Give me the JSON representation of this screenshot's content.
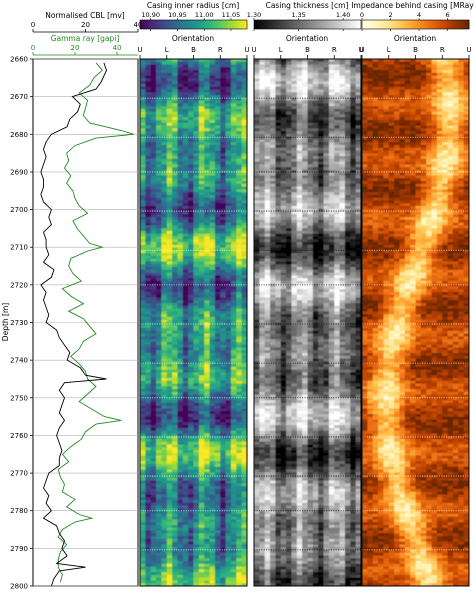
{
  "chart_data": [
    {
      "type": "line",
      "panel": "log-track",
      "ylabel": "Depth [m]",
      "ylim": [
        2800,
        2660
      ],
      "y_ticks": [
        2660,
        2670,
        2680,
        2690,
        2700,
        2710,
        2720,
        2730,
        2740,
        2750,
        2760,
        2770,
        2780,
        2790,
        2800
      ],
      "grid": true,
      "axes": [
        {
          "label": "Normalised CBL [mv]",
          "xlim": [
            0,
            40
          ],
          "ticks": [
            0,
            20,
            40
          ],
          "color": "#000000",
          "position": "top"
        },
        {
          "label": "Gamma ray [gapi]",
          "xlim": [
            0,
            50
          ],
          "ticks": [
            0,
            20,
            40
          ],
          "color": "#228b22",
          "position": "top"
        }
      ],
      "series": [
        {
          "name": "Normalised CBL [mv]",
          "color": "#000000",
          "axis": 0,
          "depth": [
            2661,
            2663,
            2666,
            2668,
            2670,
            2672,
            2674,
            2676,
            2678,
            2680,
            2682,
            2684,
            2686,
            2688,
            2690,
            2692,
            2694,
            2696,
            2698,
            2700,
            2702,
            2704,
            2706,
            2708,
            2710,
            2712,
            2714,
            2716,
            2718,
            2720,
            2722,
            2724,
            2726,
            2728,
            2730,
            2732,
            2734,
            2736,
            2738,
            2740,
            2742,
            2744,
            2745,
            2746,
            2748,
            2750,
            2752,
            2754,
            2756,
            2758,
            2760,
            2762,
            2764,
            2766,
            2768,
            2770,
            2772,
            2774,
            2776,
            2778,
            2780,
            2782,
            2784,
            2786,
            2788,
            2790,
            2792,
            2794,
            2795,
            2796,
            2798,
            2800
          ],
          "values": [
            27,
            28,
            26,
            24,
            15,
            18,
            17,
            14,
            13,
            7,
            5,
            4,
            5,
            4,
            3,
            4,
            4,
            3,
            4,
            7,
            6,
            7,
            4,
            5,
            5,
            6,
            4,
            8,
            7,
            3,
            5,
            4,
            5,
            6,
            5,
            9,
            10,
            12,
            14,
            13,
            18,
            20,
            28,
            12,
            10,
            12,
            11,
            10,
            12,
            10,
            9,
            10,
            11,
            10,
            10,
            6,
            5,
            4,
            6,
            5,
            7,
            4,
            9,
            10,
            12,
            11,
            13,
            9,
            20,
            10,
            8,
            7
          ]
        },
        {
          "name": "Gamma ray [gapi]",
          "color": "#228b22",
          "axis": 1,
          "depth": [
            2661,
            2663,
            2665,
            2667,
            2669,
            2671,
            2673,
            2675,
            2677,
            2679,
            2680,
            2681,
            2683,
            2685,
            2687,
            2689,
            2691,
            2693,
            2695,
            2697,
            2699,
            2701,
            2703,
            2705,
            2707,
            2709,
            2710,
            2711,
            2713,
            2715,
            2717,
            2719,
            2721,
            2723,
            2725,
            2727,
            2729,
            2731,
            2733,
            2735,
            2737,
            2739,
            2741,
            2743,
            2745,
            2747,
            2749,
            2751,
            2753,
            2755,
            2756,
            2757,
            2759,
            2761,
            2763,
            2765,
            2767,
            2769,
            2771,
            2773,
            2775,
            2777,
            2779,
            2781,
            2782,
            2783,
            2785,
            2787,
            2789,
            2791,
            2793,
            2795,
            2797,
            2799
          ],
          "values": [
            30,
            33,
            29,
            27,
            22,
            26,
            25,
            24,
            27,
            42,
            48,
            30,
            20,
            16,
            17,
            15,
            18,
            16,
            19,
            20,
            22,
            26,
            19,
            21,
            24,
            27,
            33,
            26,
            18,
            17,
            19,
            23,
            14,
            18,
            24,
            17,
            24,
            27,
            30,
            24,
            22,
            18,
            22,
            25,
            26,
            30,
            26,
            22,
            28,
            34,
            42,
            30,
            25,
            23,
            18,
            14,
            17,
            12,
            13,
            15,
            14,
            20,
            16,
            22,
            28,
            20,
            14,
            12,
            16,
            13,
            12,
            12,
            14,
            13
          ]
        }
      ]
    },
    {
      "type": "heatmap",
      "panel": "casing-inner-radius",
      "title": "Casing inner radius [cm]",
      "xlabel": "Orientation",
      "x_ticks": [
        "U",
        "L",
        "B",
        "R",
        "U"
      ],
      "ylim": [
        2800,
        2660
      ],
      "colormap": "viridis",
      "colorbar_range": [
        10.88,
        11.08
      ],
      "colorbar_ticks": [
        10.9,
        10.95,
        11.0,
        11.05
      ],
      "colorbar_tick_labels": [
        "10.90",
        "10.95",
        "11.00",
        "11.05"
      ]
    },
    {
      "type": "heatmap",
      "panel": "casing-thickness",
      "title": "Casing thickness [cm]",
      "xlabel": "Orientation",
      "x_ticks": [
        "U",
        "L",
        "B",
        "R",
        "U"
      ],
      "ylim": [
        2800,
        2660
      ],
      "colormap": "gray",
      "colorbar_range": [
        1.3,
        1.42
      ],
      "colorbar_ticks": [
        1.3,
        1.35,
        1.4
      ],
      "colorbar_tick_labels": [
        "1.30",
        "1.35",
        "1.40"
      ]
    },
    {
      "type": "heatmap",
      "panel": "impedance-behind-casing",
      "title": "Impedance behind casing [MRayl]",
      "xlabel": "Orientation",
      "x_ticks": [
        "U",
        "L",
        "B",
        "R",
        "U"
      ],
      "ylim": [
        2800,
        2660
      ],
      "colormap": "YlOrBr",
      "colorbar_range": [
        0,
        7.5
      ],
      "colorbar_ticks": [
        0,
        2,
        4,
        6
      ],
      "colorbar_tick_labels": [
        "0",
        "2",
        "4",
        "6"
      ]
    }
  ]
}
